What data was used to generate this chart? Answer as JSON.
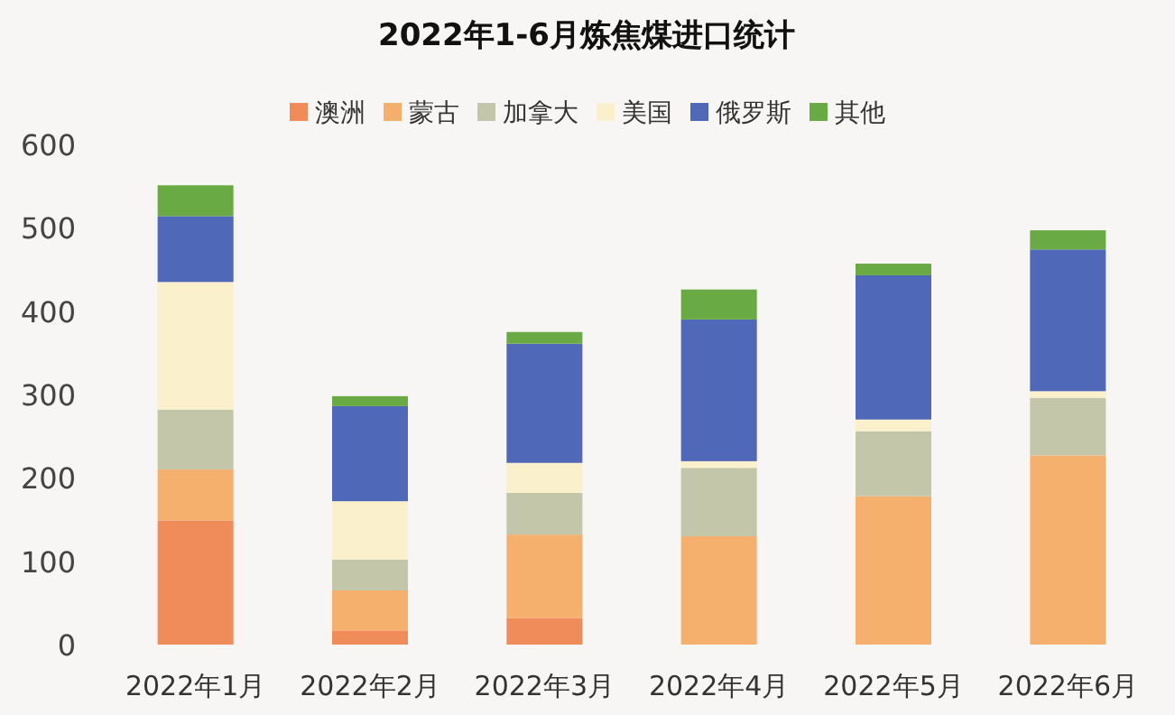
{
  "chart_data": {
    "type": "bar",
    "title": "2022年1-6月炼焦煤进口统计",
    "stacked": true,
    "legend": "top",
    "grid": false,
    "categories": [
      "2022年1月",
      "2022年2月",
      "2022年3月",
      "2022年4月",
      "2022年5月",
      "2022年6月"
    ],
    "ylim": [
      0,
      600
    ],
    "yticks": [
      0,
      100,
      200,
      300,
      400,
      500,
      600
    ],
    "series": [
      {
        "name": "澳洲",
        "color": "#f08c5a",
        "values": [
          149,
          17,
          32,
          0,
          0,
          0
        ]
      },
      {
        "name": "蒙古",
        "color": "#f5b06e",
        "values": [
          61,
          48,
          100,
          130,
          178,
          227
        ]
      },
      {
        "name": "加拿大",
        "color": "#c4c6a9",
        "values": [
          72,
          37,
          50,
          82,
          78,
          69
        ]
      },
      {
        "name": "美国",
        "color": "#faf1cc",
        "values": [
          153,
          70,
          36,
          8,
          14,
          8
        ]
      },
      {
        "name": "俄罗斯",
        "color": "#5068b8",
        "values": [
          79,
          114,
          143,
          170,
          173,
          170
        ]
      },
      {
        "name": "其他",
        "color": "#6aaa44",
        "values": [
          37,
          12,
          14,
          36,
          14,
          23
        ]
      }
    ]
  }
}
